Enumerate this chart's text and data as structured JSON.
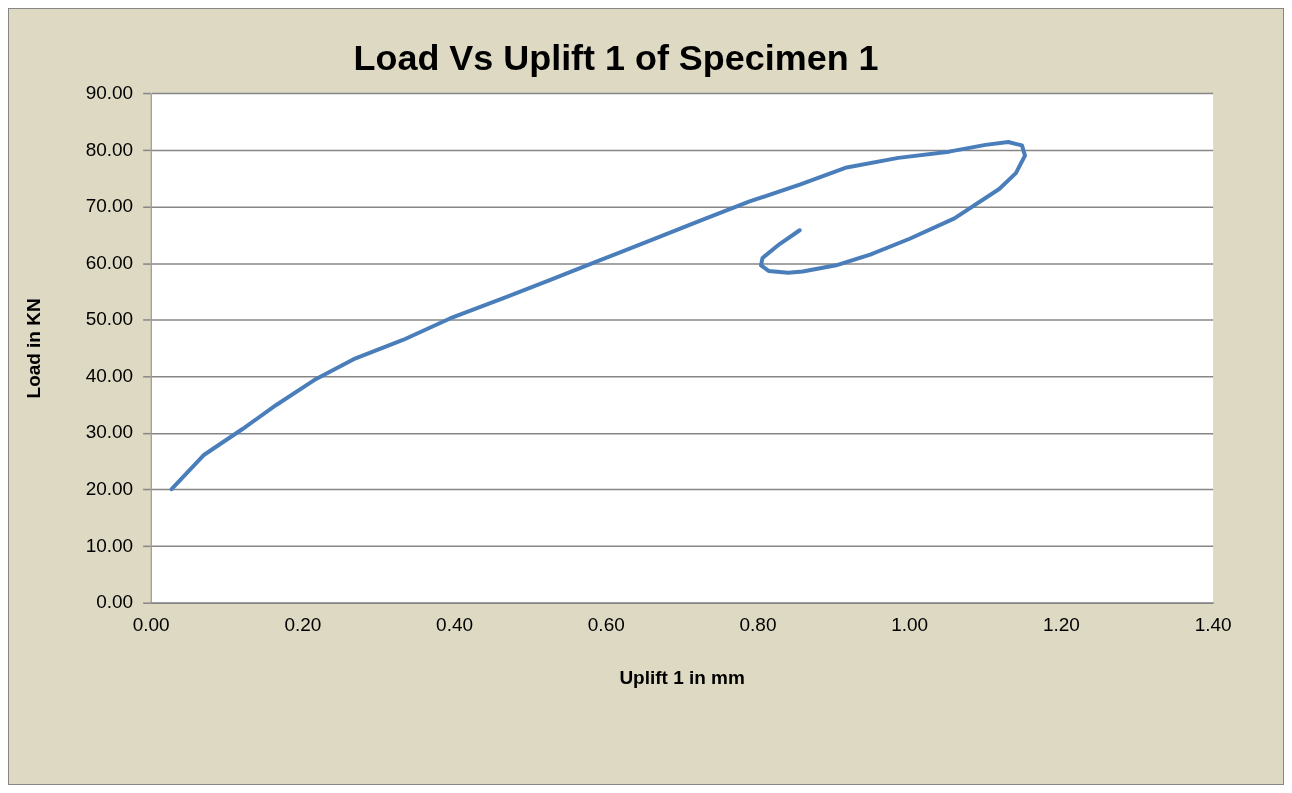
{
  "chart_data": {
    "type": "line",
    "title": "Load Vs Uplift 1 of Specimen 1",
    "xlabel": "Uplift 1 in mm",
    "ylabel": "Load in KN",
    "series": [
      {
        "color": "#4a7ebb",
        "x": [
          0.027,
          0.07,
          0.12,
          0.165,
          0.215,
          0.267,
          0.332,
          0.394,
          0.461,
          0.528,
          0.592,
          0.66,
          0.724,
          0.789,
          0.856,
          0.917,
          0.985,
          1.052,
          1.1,
          1.13,
          1.148,
          1.152,
          1.14,
          1.118,
          1.059,
          1.0,
          0.948,
          0.903,
          0.859,
          0.84,
          0.814,
          0.804,
          0.806,
          0.829,
          0.855
        ],
        "values": [
          20.1,
          26.2,
          30.7,
          35.0,
          39.4,
          43.1,
          46.5,
          50.3,
          53.7,
          57.2,
          60.6,
          64.2,
          67.6,
          71.0,
          74.0,
          77.0,
          78.7,
          79.8,
          81.0,
          81.5,
          80.9,
          79.1,
          76.0,
          73.2,
          68.0,
          64.4,
          61.6,
          59.7,
          58.6,
          58.4,
          58.7,
          59.7,
          61.0,
          63.5,
          65.9
        ]
      }
    ],
    "xlim": [
      0,
      1.4
    ],
    "xticks": [
      {
        "value": 0,
        "label": "0.00"
      },
      {
        "value": 0.2,
        "label": "0.20"
      },
      {
        "value": 0.4,
        "label": "0.40"
      },
      {
        "value": 0.6,
        "label": "0.60"
      },
      {
        "value": 0.8,
        "label": "0.80"
      },
      {
        "value": 1.0,
        "label": "1.00"
      },
      {
        "value": 1.2,
        "label": "1.20"
      },
      {
        "value": 1.4,
        "label": "1.40"
      }
    ],
    "ylim": [
      0,
      90
    ],
    "yticks": [
      {
        "value": 0,
        "label": "0.00"
      },
      {
        "value": 10,
        "label": "10.00"
      },
      {
        "value": 20,
        "label": "20.00"
      },
      {
        "value": 30,
        "label": "30.00"
      },
      {
        "value": 40,
        "label": "40.00"
      },
      {
        "value": 50,
        "label": "50.00"
      },
      {
        "value": 60,
        "label": "60.00"
      },
      {
        "value": 70,
        "label": "70.00"
      },
      {
        "value": 80,
        "label": "80.00"
      },
      {
        "value": 90,
        "label": "90.00"
      }
    ],
    "grid": "y",
    "legend": false,
    "marker": "none",
    "line_style": "solid"
  }
}
